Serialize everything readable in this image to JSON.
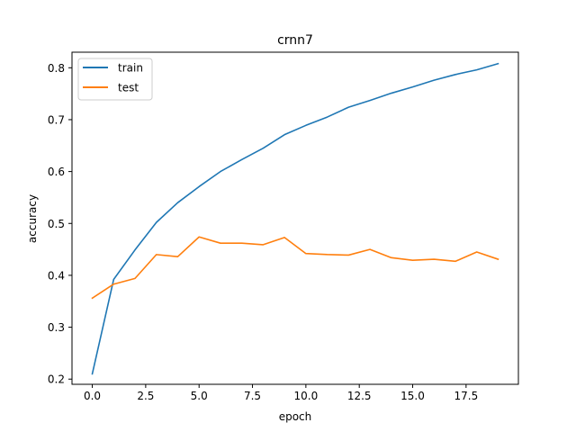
{
  "chart_data": {
    "type": "line",
    "title": "crnn7",
    "xlabel": "epoch",
    "ylabel": "accuracy",
    "xlim": [
      -0.95,
      19.95
    ],
    "ylim": [
      0.19,
      0.83
    ],
    "x": [
      0,
      1,
      2,
      3,
      4,
      5,
      6,
      7,
      8,
      9,
      10,
      11,
      12,
      13,
      14,
      15,
      16,
      17,
      18,
      19
    ],
    "xticks": [
      {
        "value": 0.0,
        "label": "0.0"
      },
      {
        "value": 2.5,
        "label": "2.5"
      },
      {
        "value": 5.0,
        "label": "5.0"
      },
      {
        "value": 7.5,
        "label": "7.5"
      },
      {
        "value": 10.0,
        "label": "10.0"
      },
      {
        "value": 12.5,
        "label": "12.5"
      },
      {
        "value": 15.0,
        "label": "15.0"
      },
      {
        "value": 17.5,
        "label": "17.5"
      }
    ],
    "yticks": [
      {
        "value": 0.2,
        "label": "0.2"
      },
      {
        "value": 0.3,
        "label": "0.3"
      },
      {
        "value": 0.4,
        "label": "0.4"
      },
      {
        "value": 0.5,
        "label": "0.5"
      },
      {
        "value": 0.6,
        "label": "0.6"
      },
      {
        "value": 0.7,
        "label": "0.7"
      },
      {
        "value": 0.8,
        "label": "0.8"
      }
    ],
    "series": [
      {
        "name": "train",
        "color": "#1f77b4",
        "values": [
          0.21,
          0.392,
          0.449,
          0.502,
          0.54,
          0.571,
          0.6,
          0.623,
          0.645,
          0.671,
          0.689,
          0.705,
          0.724,
          0.737,
          0.751,
          0.763,
          0.776,
          0.787,
          0.796,
          0.808
        ]
      },
      {
        "name": "test",
        "color": "#ff7f0e",
        "values": [
          0.356,
          0.383,
          0.394,
          0.44,
          0.436,
          0.474,
          0.462,
          0.462,
          0.459,
          0.473,
          0.442,
          0.44,
          0.439,
          0.45,
          0.434,
          0.429,
          0.431,
          0.427,
          0.445,
          0.431
        ]
      }
    ],
    "grid": false,
    "legend_position": "top-left"
  }
}
